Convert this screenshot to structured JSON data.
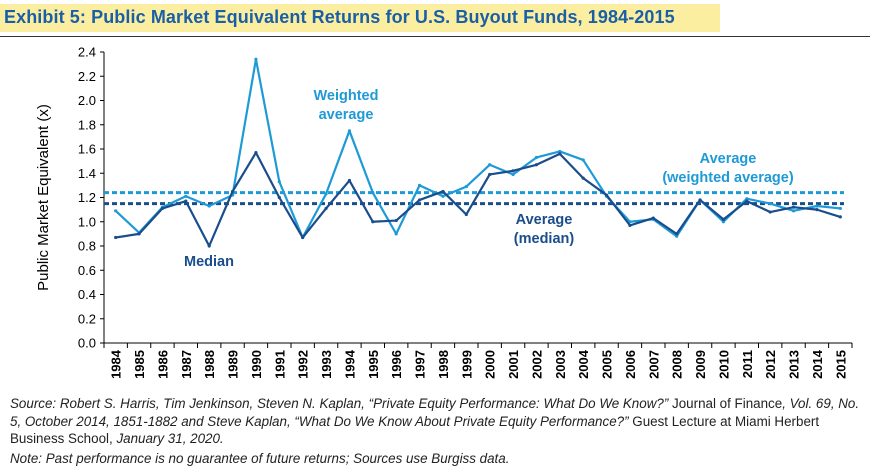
{
  "header": {
    "title": "Exhibit 5: Public Market Equivalent Returns for U.S. Buyout Funds, 1984-2015"
  },
  "chart_data": {
    "type": "line",
    "title": "Exhibit 5: Public Market Equivalent Returns for U.S. Buyout Funds, 1984-2015",
    "xlabel": "",
    "ylabel": "Public Market Equivalent (x)",
    "ylim": [
      0,
      2.4
    ],
    "yticks": [
      "0.0",
      "0.2",
      "0.4",
      "0.6",
      "0.8",
      "1.0",
      "1.2",
      "1.4",
      "1.6",
      "1.8",
      "2.0",
      "2.2",
      "2.4"
    ],
    "categories": [
      "1984",
      "1985",
      "1986",
      "1987",
      "1988",
      "1989",
      "1990",
      "1991",
      "1992",
      "1993",
      "1994",
      "1995",
      "1996",
      "1997",
      "1998",
      "1999",
      "2000",
      "2001",
      "2002",
      "2003",
      "2004",
      "2005",
      "2006",
      "2007",
      "2008",
      "2009",
      "2010",
      "2011",
      "2012",
      "2013",
      "2014",
      "2015"
    ],
    "series": [
      {
        "name": "Weighted average",
        "label_lines": [
          "Weighted",
          "average"
        ],
        "color": "#1e9ad6",
        "values": [
          1.09,
          0.91,
          1.12,
          1.21,
          1.13,
          1.22,
          2.34,
          1.33,
          0.87,
          1.23,
          1.75,
          1.24,
          0.9,
          1.3,
          1.21,
          1.29,
          1.47,
          1.39,
          1.53,
          1.58,
          1.51,
          1.21,
          1.0,
          1.02,
          0.88,
          1.18,
          1.0,
          1.19,
          1.15,
          1.09,
          1.13,
          1.11
        ]
      },
      {
        "name": "Median",
        "label_lines": [
          "Median"
        ],
        "color": "#1a4d8c",
        "values": [
          0.87,
          0.9,
          1.11,
          1.17,
          0.8,
          1.25,
          1.57,
          1.2,
          0.87,
          1.11,
          1.34,
          1.0,
          1.01,
          1.18,
          1.25,
          1.06,
          1.39,
          1.42,
          1.47,
          1.56,
          1.36,
          1.22,
          0.97,
          1.03,
          0.9,
          1.18,
          1.02,
          1.17,
          1.08,
          1.12,
          1.1,
          1.04
        ]
      }
    ],
    "reference_lines": [
      {
        "name": "Average (weighted average)",
        "label_lines": [
          "Average",
          "(weighted average)"
        ],
        "value": 1.24,
        "color": "#1e9ad6",
        "style": "dashed"
      },
      {
        "name": "Average (median)",
        "label_lines": [
          "Average",
          "(median)"
        ],
        "value": 1.15,
        "color": "#1a4d8c",
        "style": "dashed"
      }
    ],
    "grid": false,
    "legend": "inline labels"
  },
  "footer": {
    "source_label": "Source:",
    "source_line_a": " Robert S. Harris, Tim Jenkinson, Steven N. Kaplan, “Private Equity Performance: What Do We Know?” ",
    "source_line_b": "Journal of Finance",
    "source_line_c": ", Vol. 69, No. 5, October 2014, 1851-1882 and Steve Kaplan, “What Do We Know About Private Equity Performance?”",
    "source_line_d": " Guest Lecture at Miami Herbert Business School, ",
    "source_line_e": "January 31, 2020.",
    "note": "Note: Past performance is no guarantee of future returns; Sources use Burgiss data."
  }
}
